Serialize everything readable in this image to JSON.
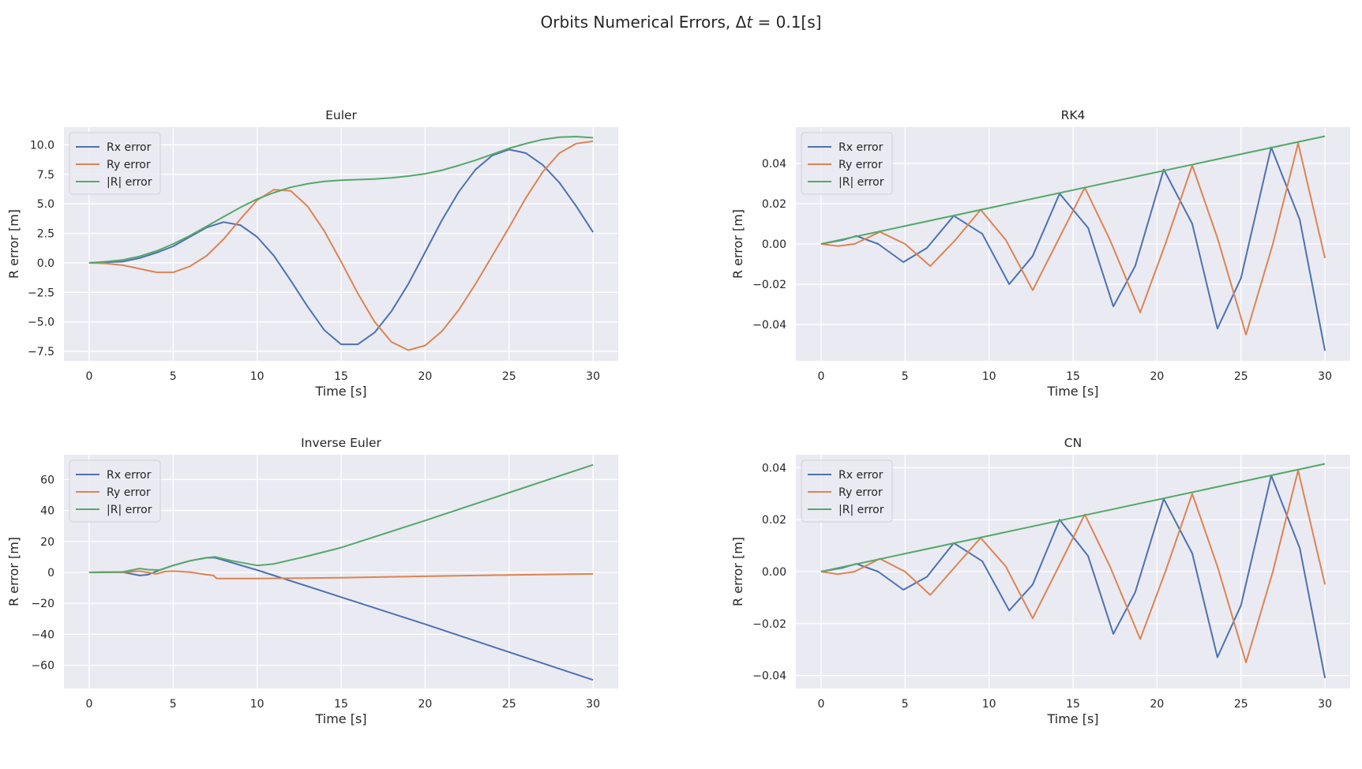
{
  "figure": {
    "title_prefix": "Orbits Numerical Errors, Δ",
    "title_symbol": "t",
    "title_suffix": " = 0.1[s]"
  },
  "chart_data": [
    {
      "type": "line",
      "title": "Euler",
      "xlabel": "Time [s]",
      "ylabel": "R error [m]",
      "xlim": [
        -1.5,
        31.5
      ],
      "ylim": [
        -8.3,
        11.5
      ],
      "xticks": [
        0,
        5,
        10,
        15,
        20,
        25,
        30
      ],
      "yticks": [
        -7.5,
        -5.0,
        -2.5,
        0.0,
        2.5,
        5.0,
        7.5,
        10.0
      ],
      "tick_decimals": 1,
      "grid": true,
      "legend": "upper left",
      "series": [
        {
          "name": "Rx error",
          "color": "#4c72b0",
          "x": [
            0,
            2,
            3,
            4,
            5,
            6,
            7,
            8,
            9,
            10,
            11,
            12,
            13,
            14,
            15,
            16,
            17,
            18,
            19,
            20,
            21,
            22,
            23,
            24,
            25,
            26,
            27,
            28,
            29,
            30
          ],
          "y": [
            0,
            0.1,
            0.4,
            0.85,
            1.4,
            2.2,
            3.0,
            3.45,
            3.2,
            2.2,
            0.6,
            -1.5,
            -3.7,
            -5.7,
            -6.9,
            -6.9,
            -5.9,
            -4.1,
            -1.8,
            0.9,
            3.6,
            6.0,
            7.9,
            9.1,
            9.6,
            9.3,
            8.3,
            6.8,
            4.8,
            2.6
          ]
        },
        {
          "name": "Ry error",
          "color": "#dd8452",
          "x": [
            0,
            1,
            2,
            3,
            4,
            5,
            6,
            7,
            8,
            9,
            10,
            11,
            12,
            13,
            14,
            15,
            16,
            17,
            18,
            19,
            20,
            21,
            22,
            23,
            24,
            25,
            26,
            27,
            28,
            29,
            30
          ],
          "y": [
            0,
            -0.05,
            -0.2,
            -0.5,
            -0.8,
            -0.8,
            -0.3,
            0.6,
            2.0,
            3.7,
            5.3,
            6.2,
            6.1,
            4.8,
            2.7,
            0.1,
            -2.6,
            -5.0,
            -6.7,
            -7.4,
            -7.0,
            -5.8,
            -4.0,
            -1.8,
            0.6,
            3.0,
            5.5,
            7.7,
            9.3,
            10.1,
            10.3
          ]
        },
        {
          "name": "|R|  error",
          "color": "#55a868",
          "x": [
            0,
            1,
            2,
            3,
            4,
            5,
            6,
            7,
            8,
            9,
            10,
            11,
            12,
            13,
            14,
            15,
            16,
            17,
            18,
            19,
            20,
            21,
            22,
            23,
            24,
            25,
            26,
            27,
            28,
            29,
            30
          ],
          "y": [
            0,
            0.1,
            0.25,
            0.55,
            1.0,
            1.6,
            2.3,
            3.1,
            3.9,
            4.7,
            5.4,
            5.95,
            6.4,
            6.7,
            6.9,
            7.0,
            7.05,
            7.1,
            7.2,
            7.35,
            7.55,
            7.85,
            8.25,
            8.7,
            9.2,
            9.7,
            10.1,
            10.45,
            10.65,
            10.7,
            10.6
          ]
        }
      ]
    },
    {
      "type": "line",
      "title": "RK4",
      "xlabel": "Time [s]",
      "ylabel": "R error [m]",
      "xlim": [
        -1.5,
        31.5
      ],
      "ylim": [
        -0.058,
        0.058
      ],
      "xticks": [
        0,
        5,
        10,
        15,
        20,
        25,
        30
      ],
      "yticks": [
        -0.04,
        -0.02,
        0.0,
        0.02,
        0.04
      ],
      "tick_decimals": 2,
      "grid": true,
      "legend": "upper left",
      "series": [
        {
          "name": "Rx error",
          "color": "#4c72b0",
          "x": [
            0,
            1.3,
            2.1,
            3.4,
            4.9,
            6.3,
            7.9,
            9.6,
            11.2,
            12.6,
            14.2,
            15.9,
            17.4,
            18.7,
            20.4,
            22.1,
            23.6,
            25.0,
            26.8,
            28.5,
            30
          ],
          "y": [
            0,
            0.002,
            0.004,
            0.0,
            -0.009,
            -0.002,
            0.014,
            0.005,
            -0.02,
            -0.006,
            0.025,
            0.008,
            -0.031,
            -0.011,
            0.037,
            0.01,
            -0.042,
            -0.017,
            0.048,
            0.012,
            -0.053
          ]
        },
        {
          "name": "Ry error",
          "color": "#dd8452",
          "x": [
            0,
            1.0,
            2.0,
            3.5,
            5.0,
            6.5,
            8.0,
            9.5,
            11.0,
            12.6,
            14.0,
            15.7,
            17.2,
            19.0,
            20.5,
            22.1,
            23.6,
            25.3,
            26.9,
            28.4,
            30
          ],
          "y": [
            0,
            -0.001,
            0.0,
            0.006,
            0.0,
            -0.011,
            0.002,
            0.017,
            0.002,
            -0.023,
            0.0,
            0.028,
            0.002,
            -0.034,
            0.0,
            0.039,
            0.003,
            -0.045,
            0.0,
            0.05,
            -0.007
          ]
        },
        {
          "name": "|R|  error",
          "color": "#55a868",
          "x": [
            0,
            30
          ],
          "y": [
            0,
            0.0535
          ]
        }
      ]
    },
    {
      "type": "line",
      "title": "Inverse Euler",
      "xlabel": "Time [s]",
      "ylabel": "R error [m]",
      "xlim": [
        -1.5,
        31.5
      ],
      "ylim": [
        -75,
        76
      ],
      "xticks": [
        0,
        5,
        10,
        15,
        20,
        25,
        30
      ],
      "yticks": [
        -60,
        -40,
        -20,
        0,
        20,
        40,
        60
      ],
      "tick_decimals": 0,
      "grid": true,
      "legend": "upper left",
      "series": [
        {
          "name": "Rx error",
          "color": "#4c72b0",
          "x": [
            0,
            2,
            3,
            3.5,
            4.2,
            5,
            6,
            7,
            7.5,
            10,
            15,
            20,
            25,
            30
          ],
          "y": [
            0,
            0.2,
            -2,
            -1.5,
            1.5,
            4.5,
            7.5,
            9.5,
            9.5,
            1.5,
            -16,
            -33.5,
            -51.5,
            -69.5
          ]
        },
        {
          "name": "Ry error",
          "color": "#dd8452",
          "x": [
            0,
            2,
            3,
            4,
            4.5,
            5,
            6,
            7,
            7.4,
            7.6,
            10,
            15,
            20,
            25,
            30
          ],
          "y": [
            0,
            0.1,
            0.8,
            -1,
            0.5,
            0.8,
            0.2,
            -1.5,
            -2,
            -4,
            -4,
            -3.5,
            -2.5,
            -1.7,
            -1
          ]
        },
        {
          "name": "|R|  error",
          "color": "#55a868",
          "x": [
            0,
            2,
            3,
            3.5,
            4.2,
            5,
            6,
            7,
            7.5,
            8.5,
            10,
            11,
            13,
            15,
            20,
            25,
            30
          ],
          "y": [
            0,
            0.3,
            2.5,
            1.8,
            1.5,
            4.5,
            7.5,
            9.5,
            10,
            7.5,
            4.5,
            5.5,
            10.5,
            16,
            33.5,
            51.5,
            69.5
          ]
        }
      ]
    },
    {
      "type": "line",
      "title": "CN",
      "xlabel": "Time [s]",
      "ylabel": "R error [m]",
      "xlim": [
        -1.5,
        31.5
      ],
      "ylim": [
        -0.045,
        0.045
      ],
      "xticks": [
        0,
        5,
        10,
        15,
        20,
        25,
        30
      ],
      "yticks": [
        -0.04,
        -0.02,
        0.0,
        0.02,
        0.04
      ],
      "tick_decimals": 2,
      "grid": true,
      "legend": "upper left",
      "series": [
        {
          "name": "Rx error",
          "color": "#4c72b0",
          "x": [
            0,
            1.3,
            2.1,
            3.4,
            4.9,
            6.3,
            7.9,
            9.6,
            11.2,
            12.6,
            14.2,
            15.9,
            17.4,
            18.7,
            20.4,
            22.1,
            23.6,
            25.0,
            26.8,
            28.5,
            30
          ],
          "y": [
            0,
            0.0015,
            0.003,
            0.0,
            -0.007,
            -0.002,
            0.011,
            0.004,
            -0.015,
            -0.005,
            0.02,
            0.006,
            -0.024,
            -0.008,
            0.028,
            0.007,
            -0.033,
            -0.013,
            0.037,
            0.009,
            -0.041
          ]
        },
        {
          "name": "Ry error",
          "color": "#dd8452",
          "x": [
            0,
            1.0,
            2.0,
            3.5,
            5.0,
            6.5,
            8.0,
            9.5,
            11.0,
            12.6,
            14.0,
            15.7,
            17.2,
            19.0,
            20.5,
            22.1,
            23.6,
            25.3,
            26.9,
            28.4,
            30
          ],
          "y": [
            0,
            -0.001,
            0.0,
            0.005,
            0.0,
            -0.009,
            0.002,
            0.013,
            0.002,
            -0.018,
            0.0,
            0.022,
            0.002,
            -0.026,
            0.0,
            0.03,
            0.002,
            -0.035,
            0.0,
            0.039,
            -0.005
          ]
        },
        {
          "name": "|R|  error",
          "color": "#55a868",
          "x": [
            0,
            30
          ],
          "y": [
            0,
            0.0415
          ]
        }
      ]
    }
  ]
}
